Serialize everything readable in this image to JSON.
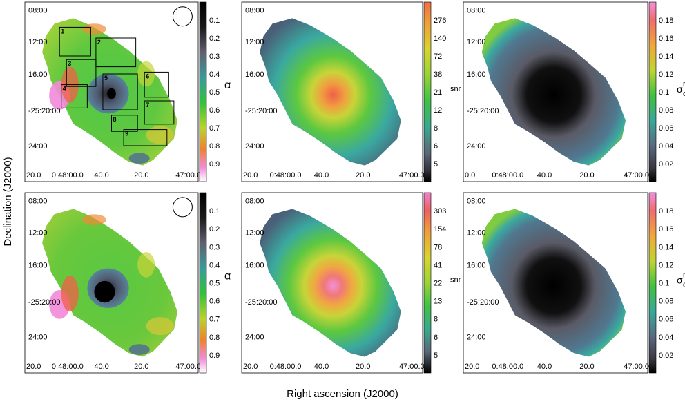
{
  "figure": {
    "ylabel": "Declination (J2000)",
    "xlabel": "Right ascension (J2000)",
    "ra_ticks": [
      "20.0",
      "0:48:00.0",
      "40.0",
      "20.0",
      "47:00.0"
    ],
    "ra_ticks_upper_right": [
      "0.0",
      "0:48:00.0",
      "40.0",
      "20.0",
      "47:00.0"
    ],
    "dec_ticks": [
      "08:00",
      "12:00",
      "16:00",
      "-25:20:00",
      "24:00"
    ]
  },
  "panels": [
    {
      "id": "top-alpha",
      "kind": "alpha",
      "colorbar_label": "α",
      "colorbar_ticks": [
        "0.1",
        "0.2",
        "0.3",
        "0.4",
        "0.5",
        "0.6",
        "0.7",
        "0.8",
        "0.9"
      ],
      "beam": true,
      "regions": [
        {
          "label": "1"
        },
        {
          "label": "2"
        },
        {
          "label": "3"
        },
        {
          "label": "4"
        },
        {
          "label": "5"
        },
        {
          "label": "6"
        },
        {
          "label": "7"
        },
        {
          "label": "8"
        },
        {
          "label": "9"
        }
      ]
    },
    {
      "id": "top-snr",
      "kind": "snr",
      "colorbar_label": "snr",
      "colorbar_ticks": [
        "276",
        "140",
        "72",
        "38",
        "21",
        "12",
        "8",
        "6",
        "5"
      ]
    },
    {
      "id": "top-rms",
      "kind": "rms",
      "colorbar_label": "σ",
      "colorbar_label_sub": "α",
      "colorbar_label_sup": "rms",
      "colorbar_ticks": [
        "0.18",
        "0.16",
        "0.14",
        "0.12",
        "0.1",
        "0.08",
        "0.06",
        "0.04",
        "0.02"
      ]
    },
    {
      "id": "bottom-alpha",
      "kind": "alpha",
      "colorbar_label": "α",
      "colorbar_ticks": [
        "0.1",
        "0.2",
        "0.3",
        "0.4",
        "0.5",
        "0.6",
        "0.7",
        "0.8",
        "0.9"
      ],
      "beam": true
    },
    {
      "id": "bottom-snr",
      "kind": "snr",
      "colorbar_label": "snr",
      "colorbar_ticks": [
        "303",
        "154",
        "78",
        "41",
        "22",
        "13",
        "8",
        "6",
        "5"
      ]
    },
    {
      "id": "bottom-rms",
      "kind": "rms",
      "colorbar_label": "σ",
      "colorbar_label_sub": "α",
      "colorbar_label_sup": "rms",
      "colorbar_ticks": [
        "0.18",
        "0.16",
        "0.14",
        "0.12",
        "0.1",
        "0.08",
        "0.06",
        "0.04",
        "0.02"
      ]
    }
  ]
}
